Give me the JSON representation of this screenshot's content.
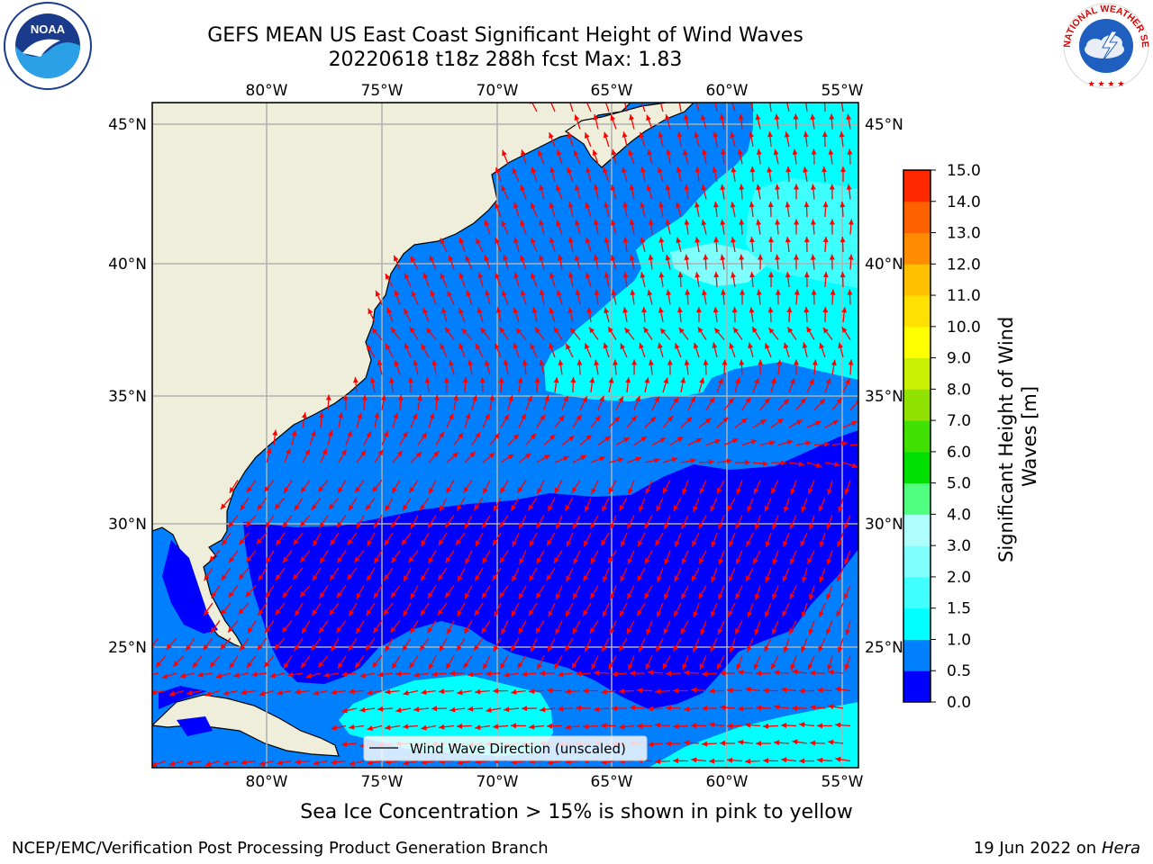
{
  "title": {
    "line1": "GEFS MEAN US East Coast Significant Height of Wind Waves",
    "line2": "20220618 t18z 288h fcst   Max: 1.83"
  },
  "map": {
    "lon_labels": [
      "80°W",
      "75°W",
      "70°W",
      "65°W",
      "60°W",
      "55°W"
    ],
    "lat_labels": [
      "45°N",
      "40°N",
      "35°N",
      "30°N",
      "25°N"
    ],
    "legend_label": "Wind Wave Direction (unscaled)"
  },
  "colorbar": {
    "label": "Significant Height of Wind Waves [m]",
    "ticks": [
      "0.0",
      "0.5",
      "1.0",
      "1.5",
      "2.0",
      "3.0",
      "4.0",
      "5.0",
      "6.0",
      "7.0",
      "8.0",
      "9.0",
      "10.0",
      "11.0",
      "12.0",
      "13.0",
      "14.0",
      "15.0"
    ],
    "colors": [
      "#0000ff",
      "#0080ff",
      "#00ffff",
      "#40ffff",
      "#80ffff",
      "#b0ffff",
      "#50ff80",
      "#00e000",
      "#40e000",
      "#90e000",
      "#c8f000",
      "#ffff00",
      "#ffe000",
      "#ffc000",
      "#ff8c00",
      "#ff6000",
      "#ff2800",
      "#ff0000"
    ]
  },
  "colors": {
    "land": "#efeedb",
    "arrows": "#ff0000"
  },
  "logos": {
    "noaa": "NOAA",
    "nws": "NATIONAL WEATHER SERVICE"
  },
  "footer": {
    "sea_ice_note": "Sea Ice Concentration > 15% is shown in pink to yellow",
    "credit": "NCEP/EMC/Verification Post Processing Product Generation Branch",
    "date": "19 Jun 2022 on",
    "host": "Hera"
  }
}
